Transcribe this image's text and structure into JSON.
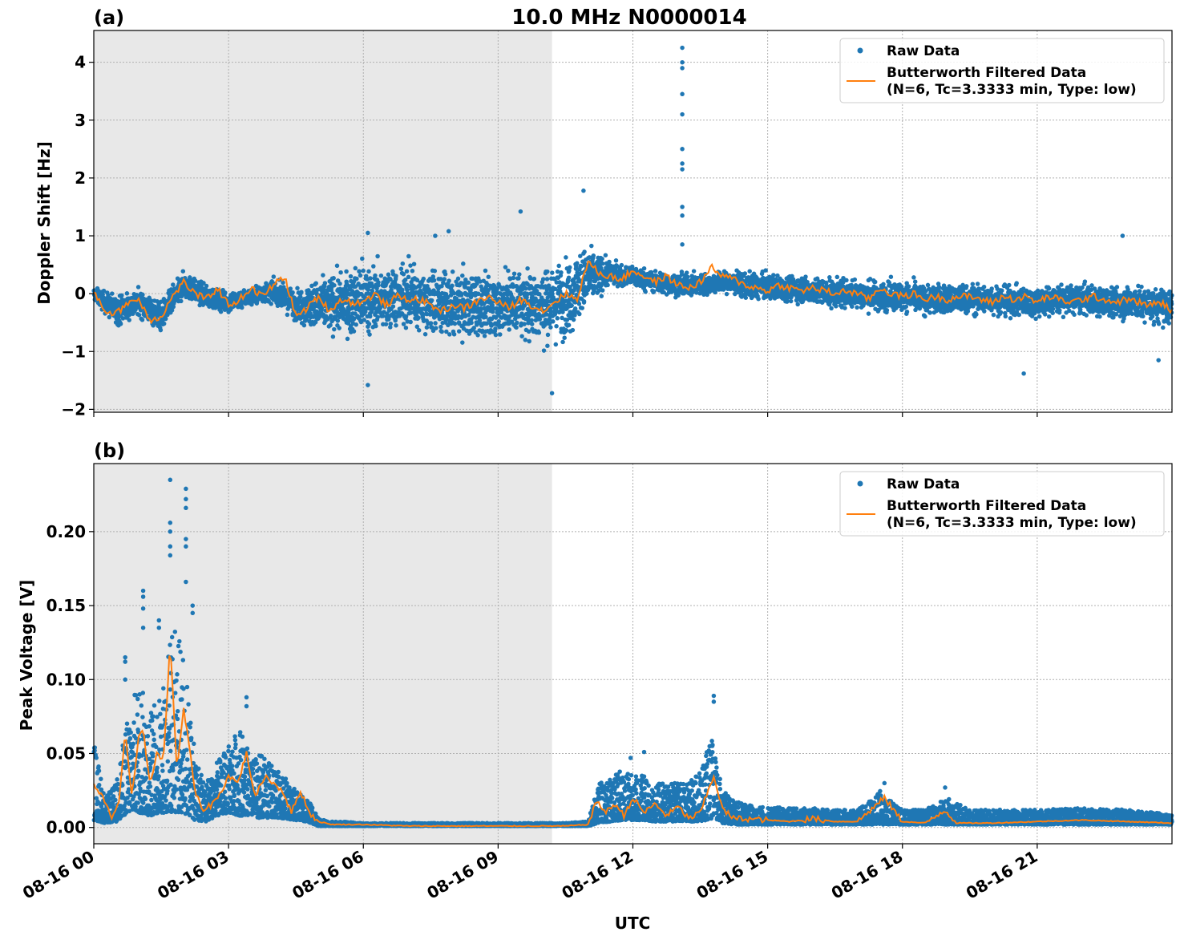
{
  "figure": {
    "title": "10.0 MHz N0000014",
    "xlabel": "UTC",
    "x_ticks": [
      "08-16 00",
      "08-16 03",
      "08-16 06",
      "08-16 09",
      "08-16 12",
      "08-16 15",
      "08-16 18",
      "08-16 21"
    ],
    "night_shading": {
      "start_hour": 0,
      "end_hour": 10.2,
      "color": "#e8e8e8"
    }
  },
  "legend": {
    "raw_label": "Raw Data",
    "filtered_label_line1": "Butterworth Filtered Data",
    "filtered_label_line2": "(N=6, Tc=3.3333 min, Type: low)"
  },
  "colors": {
    "raw": "#1f77b4",
    "filtered": "#ff7f0e",
    "night": "#e8e8e8"
  },
  "chart_data": [
    {
      "type": "scatter",
      "panel_label": "(a)",
      "ylabel": "Doppler Shift [Hz]",
      "xlim_hours": [
        0,
        24
      ],
      "ylim": [
        -2.05,
        4.55
      ],
      "y_ticks": [
        -2,
        -1,
        0,
        1,
        2,
        3,
        4
      ],
      "y_tick_labels": [
        "−2",
        "−1",
        "0",
        "1",
        "2",
        "3",
        "4"
      ],
      "grid": true,
      "legend_position": "upper-right",
      "series": [
        {
          "kind": "raw-scatter",
          "x_hours": [
            0,
            0.5,
            1,
            1.5,
            2,
            2.5,
            3,
            3.5,
            4,
            4.5,
            5,
            5.5,
            6,
            6.5,
            7,
            7.5,
            8,
            8.5,
            9,
            9.5,
            10,
            10.5,
            11,
            11.5,
            12,
            12.5,
            13,
            13.5,
            14,
            14.5,
            15,
            15.5,
            16,
            16.5,
            17,
            17.5,
            18,
            18.5,
            19,
            19.5,
            20,
            20.5,
            21,
            21.5,
            22,
            22.5,
            23,
            23.5,
            24
          ],
          "center": [
            0.0,
            -0.3,
            -0.15,
            -0.4,
            0.15,
            -0.05,
            -0.15,
            -0.05,
            0.05,
            -0.2,
            -0.2,
            -0.15,
            -0.1,
            -0.05,
            -0.05,
            -0.15,
            -0.2,
            -0.2,
            -0.2,
            -0.15,
            -0.2,
            -0.1,
            0.3,
            0.35,
            0.3,
            0.2,
            0.15,
            0.15,
            0.2,
            0.15,
            0.1,
            0.1,
            0.05,
            0.0,
            0.0,
            -0.05,
            -0.05,
            -0.1,
            -0.1,
            -0.1,
            -0.1,
            -0.15,
            -0.15,
            -0.1,
            -0.1,
            -0.15,
            -0.15,
            -0.2,
            -0.25
          ],
          "spread": [
            0.15,
            0.35,
            0.3,
            0.35,
            0.3,
            0.25,
            0.25,
            0.2,
            0.25,
            0.35,
            0.6,
            0.7,
            0.75,
            0.7,
            0.7,
            0.7,
            0.7,
            0.7,
            0.7,
            0.75,
            0.85,
            0.9,
            0.7,
            0.25,
            0.25,
            0.25,
            0.25,
            0.25,
            0.25,
            0.3,
            0.3,
            0.3,
            0.3,
            0.35,
            0.35,
            0.35,
            0.35,
            0.35,
            0.35,
            0.35,
            0.35,
            0.35,
            0.35,
            0.35,
            0.35,
            0.35,
            0.4,
            0.4,
            0.45
          ],
          "outliers": [
            [
              13.1,
              4.25
            ],
            [
              13.1,
              4.0
            ],
            [
              13.1,
              3.9
            ],
            [
              13.1,
              3.45
            ],
            [
              13.1,
              3.1
            ],
            [
              13.1,
              2.5
            ],
            [
              13.1,
              2.25
            ],
            [
              13.1,
              2.15
            ],
            [
              13.1,
              1.5
            ],
            [
              13.1,
              1.35
            ],
            [
              13.1,
              0.85
            ],
            [
              10.9,
              1.78
            ],
            [
              9.5,
              1.42
            ],
            [
              6.1,
              1.05
            ],
            [
              7.6,
              1.0
            ],
            [
              7.9,
              1.08
            ],
            [
              20.7,
              -1.38
            ],
            [
              10.2,
              -1.72
            ],
            [
              6.1,
              -1.58
            ],
            [
              22.9,
              1.0
            ],
            [
              23.7,
              -1.15
            ]
          ]
        },
        {
          "kind": "filtered-line",
          "x_hours": [
            0,
            0.25,
            0.5,
            0.75,
            1,
            1.25,
            1.5,
            1.75,
            2,
            2.25,
            2.5,
            2.75,
            3,
            3.25,
            3.5,
            3.75,
            4,
            4.25,
            4.5,
            4.75,
            5,
            5.25,
            5.5,
            5.75,
            6,
            6.25,
            6.5,
            6.75,
            7,
            7.25,
            7.5,
            7.75,
            8,
            8.25,
            8.5,
            8.75,
            9,
            9.25,
            9.5,
            9.75,
            10,
            10.25,
            10.5,
            10.75,
            11,
            11.25,
            11.5,
            11.75,
            12,
            12.25,
            12.5,
            12.75,
            13,
            13.25,
            13.5,
            13.75,
            14,
            14.25,
            14.5,
            14.75,
            15,
            15.25,
            15.5,
            15.75,
            16,
            16.25,
            16.5,
            16.75,
            17,
            17.25,
            17.5,
            17.75,
            18,
            18.25,
            18.5,
            18.75,
            19,
            19.25,
            19.5,
            19.75,
            20,
            20.25,
            20.5,
            20.75,
            21,
            21.25,
            21.5,
            21.75,
            22,
            22.25,
            22.5,
            22.75,
            23,
            23.25,
            23.5,
            23.75,
            24
          ],
          "y": [
            0.05,
            -0.3,
            -0.35,
            -0.15,
            -0.1,
            -0.45,
            -0.4,
            -0.05,
            0.2,
            0.0,
            -0.1,
            0.1,
            -0.2,
            -0.1,
            0.1,
            -0.05,
            0.15,
            0.3,
            -0.4,
            -0.25,
            -0.05,
            -0.3,
            -0.1,
            -0.15,
            -0.15,
            0.0,
            -0.2,
            -0.05,
            -0.1,
            -0.1,
            -0.2,
            -0.3,
            -0.2,
            -0.25,
            -0.15,
            -0.05,
            -0.15,
            -0.25,
            -0.1,
            -0.2,
            -0.3,
            -0.15,
            0.0,
            -0.1,
            0.55,
            0.35,
            0.3,
            0.25,
            0.4,
            0.3,
            0.2,
            0.3,
            0.15,
            0.1,
            0.2,
            0.45,
            0.3,
            0.25,
            0.15,
            0.1,
            0.05,
            0.15,
            0.1,
            0.05,
            0.1,
            0.05,
            0.0,
            0.05,
            0.0,
            -0.1,
            0.1,
            0.0,
            -0.05,
            0.0,
            -0.1,
            -0.05,
            -0.1,
            -0.05,
            -0.05,
            -0.1,
            -0.15,
            -0.05,
            -0.1,
            -0.05,
            -0.15,
            -0.05,
            -0.1,
            -0.15,
            -0.1,
            -0.05,
            -0.1,
            -0.15,
            -0.1,
            -0.15,
            -0.2,
            -0.15,
            -0.3
          ]
        }
      ]
    },
    {
      "type": "scatter",
      "panel_label": "(b)",
      "ylabel": "Peak Voltage [V]",
      "xlim_hours": [
        0,
        24
      ],
      "ylim": [
        -0.011,
        0.246
      ],
      "y_ticks": [
        0.0,
        0.05,
        0.1,
        0.15,
        0.2
      ],
      "y_tick_labels": [
        "0.00",
        "0.05",
        "0.10",
        "0.15",
        "0.20"
      ],
      "grid": true,
      "legend_position": "upper-right",
      "series": [
        {
          "kind": "raw-scatter",
          "x_hours": [
            0,
            0.25,
            0.5,
            0.75,
            1,
            1.25,
            1.5,
            1.75,
            2,
            2.25,
            2.5,
            2.75,
            3,
            3.25,
            3.5,
            3.75,
            4,
            4.25,
            4.5,
            4.75,
            5,
            5.25,
            5.5,
            6,
            7,
            8,
            9,
            10,
            10.5,
            11,
            11.25,
            11.5,
            11.75,
            12,
            12.25,
            12.5,
            12.75,
            13,
            13.25,
            13.5,
            13.75,
            14,
            14.25,
            14.5,
            15,
            15.5,
            16,
            16.5,
            17,
            17.5,
            18,
            18.5,
            19,
            19.5,
            20,
            21,
            22,
            23,
            24
          ],
          "low": [
            0.005,
            0.003,
            0.004,
            0.01,
            0.01,
            0.008,
            0.01,
            0.01,
            0.01,
            0.005,
            0.004,
            0.008,
            0.01,
            0.008,
            0.008,
            0.006,
            0.007,
            0.006,
            0.005,
            0.004,
            0.001,
            0.001,
            0.001,
            0.001,
            0.001,
            0.001,
            0.001,
            0.001,
            0.001,
            0.001,
            0.003,
            0.004,
            0.005,
            0.005,
            0.005,
            0.004,
            0.004,
            0.004,
            0.004,
            0.004,
            0.006,
            0.003,
            0.002,
            0.002,
            0.002,
            0.002,
            0.002,
            0.002,
            0.002,
            0.002,
            0.002,
            0.002,
            0.002,
            0.002,
            0.002,
            0.002,
            0.002,
            0.002,
            0.002
          ],
          "high": [
            0.06,
            0.02,
            0.03,
            0.075,
            0.1,
            0.08,
            0.09,
            0.14,
            0.12,
            0.05,
            0.03,
            0.045,
            0.055,
            0.07,
            0.045,
            0.05,
            0.04,
            0.035,
            0.025,
            0.02,
            0.006,
            0.004,
            0.004,
            0.003,
            0.003,
            0.003,
            0.003,
            0.003,
            0.003,
            0.004,
            0.03,
            0.035,
            0.04,
            0.035,
            0.035,
            0.03,
            0.03,
            0.03,
            0.03,
            0.04,
            0.06,
            0.025,
            0.018,
            0.016,
            0.014,
            0.013,
            0.013,
            0.012,
            0.012,
            0.025,
            0.012,
            0.012,
            0.02,
            0.012,
            0.012,
            0.012,
            0.013,
            0.012,
            0.009
          ],
          "outliers": [
            [
              1.7,
              0.235
            ],
            [
              1.7,
              0.206
            ],
            [
              1.7,
              0.2
            ],
            [
              1.7,
              0.19
            ],
            [
              1.7,
              0.184
            ],
            [
              2.05,
              0.229
            ],
            [
              2.05,
              0.222
            ],
            [
              2.05,
              0.216
            ],
            [
              2.05,
              0.195
            ],
            [
              2.05,
              0.19
            ],
            [
              2.05,
              0.166
            ],
            [
              1.1,
              0.16
            ],
            [
              1.1,
              0.156
            ],
            [
              1.1,
              0.148
            ],
            [
              1.1,
              0.135
            ],
            [
              0.7,
              0.115
            ],
            [
              0.7,
              0.112
            ],
            [
              0.7,
              0.1
            ],
            [
              1.45,
              0.14
            ],
            [
              1.45,
              0.135
            ],
            [
              2.2,
              0.15
            ],
            [
              2.2,
              0.145
            ],
            [
              3.4,
              0.088
            ],
            [
              3.4,
              0.082
            ],
            [
              13.8,
              0.089
            ],
            [
              13.8,
              0.085
            ],
            [
              12.25,
              0.051
            ],
            [
              11.95,
              0.047
            ],
            [
              17.6,
              0.03
            ],
            [
              18.95,
              0.027
            ]
          ]
        },
        {
          "kind": "filtered-line",
          "x_hours": [
            0,
            0.2,
            0.4,
            0.55,
            0.7,
            0.85,
            1.0,
            1.1,
            1.25,
            1.4,
            1.55,
            1.7,
            1.85,
            2.0,
            2.1,
            2.25,
            2.4,
            2.6,
            2.8,
            3.0,
            3.2,
            3.4,
            3.6,
            3.8,
            4.0,
            4.2,
            4.4,
            4.6,
            4.8,
            5.0,
            5.3,
            6,
            7,
            8,
            9,
            10,
            10.5,
            11,
            11.2,
            11.4,
            11.6,
            11.8,
            12.0,
            12.25,
            12.5,
            12.75,
            13.0,
            13.25,
            13.5,
            13.8,
            14.0,
            14.25,
            14.5,
            15,
            15.5,
            16,
            16.5,
            17,
            17.6,
            18,
            18.5,
            18.95,
            19.2,
            19.5,
            20,
            21,
            22,
            23,
            24
          ],
          "y": [
            0.03,
            0.02,
            0.006,
            0.015,
            0.065,
            0.02,
            0.06,
            0.065,
            0.03,
            0.05,
            0.045,
            0.125,
            0.04,
            0.08,
            0.06,
            0.025,
            0.012,
            0.015,
            0.022,
            0.035,
            0.03,
            0.05,
            0.02,
            0.035,
            0.03,
            0.025,
            0.01,
            0.025,
            0.01,
            0.004,
            0.002,
            0.002,
            0.001,
            0.001,
            0.001,
            0.001,
            0.001,
            0.002,
            0.018,
            0.01,
            0.016,
            0.008,
            0.02,
            0.01,
            0.016,
            0.008,
            0.014,
            0.006,
            0.01,
            0.035,
            0.012,
            0.006,
            0.006,
            0.005,
            0.004,
            0.006,
            0.004,
            0.004,
            0.02,
            0.004,
            0.003,
            0.012,
            0.003,
            0.003,
            0.003,
            0.004,
            0.005,
            0.004,
            0.003
          ]
        }
      ]
    }
  ]
}
